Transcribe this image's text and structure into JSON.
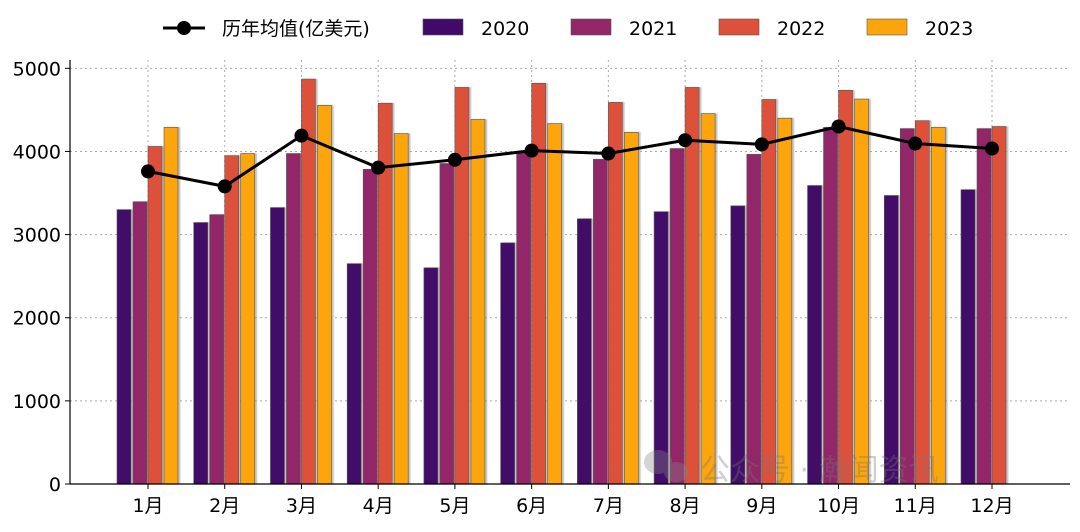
{
  "chart_data": {
    "type": "bar",
    "title": "",
    "xlabel": "",
    "ylabel": "",
    "ylim": [
      0,
      5100
    ],
    "yticks": [
      0,
      1000,
      2000,
      3000,
      4000,
      5000
    ],
    "categories": [
      "1月",
      "2月",
      "3月",
      "4月",
      "5月",
      "6月",
      "7月",
      "8月",
      "9月",
      "10月",
      "11月",
      "12月"
    ],
    "series": [
      {
        "name": "2020",
        "color": "#420a68",
        "values": [
          3300,
          3145,
          3325,
          2650,
          2600,
          2900,
          3190,
          3275,
          3345,
          3590,
          3470,
          3540
        ]
      },
      {
        "name": "2021",
        "color": "#932667",
        "values": [
          3395,
          3240,
          3975,
          3785,
          3855,
          4000,
          3905,
          4035,
          3965,
          4290,
          4275,
          4275
        ]
      },
      {
        "name": "2022",
        "color": "#dd513a",
        "values": [
          4060,
          3950,
          4870,
          4580,
          4770,
          4820,
          4590,
          4770,
          4625,
          4735,
          4370,
          4300
        ]
      },
      {
        "name": "2023",
        "color": "#fca50a",
        "values": [
          4290,
          3975,
          4555,
          4215,
          4385,
          4335,
          4230,
          4455,
          4400,
          4630,
          4290,
          null
        ]
      }
    ],
    "line": {
      "name": "历年均值(亿美元)",
      "color": "#000000",
      "values": [
        3760,
        3580,
        4190,
        3805,
        3900,
        4010,
        3975,
        4135,
        4085,
        4300,
        4095,
        4035
      ]
    },
    "grid": true,
    "legend": "top"
  },
  "watermark": "公众号 · 瀚闻资讯"
}
